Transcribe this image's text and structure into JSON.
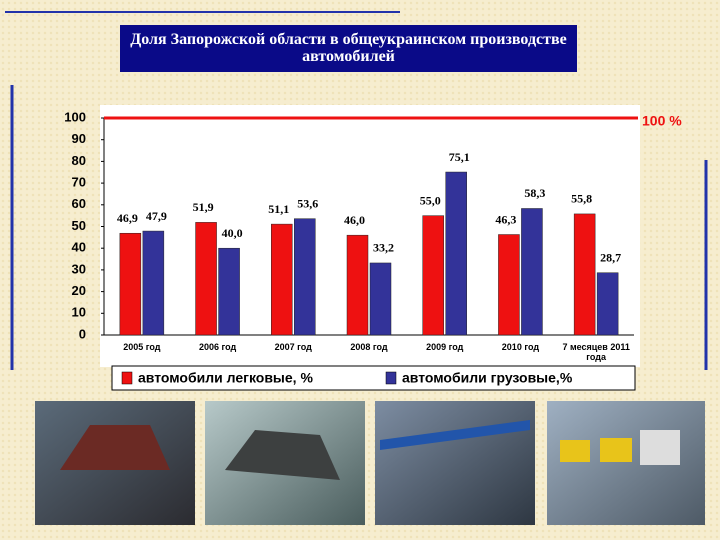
{
  "chart_data": {
    "type": "bar",
    "title": "Доля Запорожской области в общеукраинском производстве автомобилей",
    "categories": [
      "2005 год",
      "2006 год",
      "2007 год",
      "2008 год",
      "2009 год",
      "2010 год",
      "7 месяцев 2011 года"
    ],
    "series": [
      {
        "name": "автомобили легковые, %",
        "color": "#ee1111",
        "values": [
          46.9,
          51.9,
          51.1,
          46.0,
          55.0,
          46.3,
          55.8
        ],
        "value_labels": [
          "46,9",
          "51,9",
          "51,1",
          "46,0",
          "55,0",
          "46,3",
          "55,8"
        ]
      },
      {
        "name": "автомобили грузовые,%",
        "color": "#333399",
        "values": [
          47.9,
          40.0,
          53.6,
          33.2,
          75.1,
          58.3,
          28.7
        ],
        "value_labels": [
          "47,9",
          "40,0",
          "53,6",
          "33,2",
          "75,1",
          "58,3",
          "28,7"
        ]
      }
    ],
    "ylim": [
      0,
      100
    ],
    "yticks": [
      0,
      10,
      20,
      30,
      40,
      50,
      60,
      70,
      80,
      90,
      100
    ],
    "reference_line": {
      "value": 100,
      "label": "100 %",
      "color": "#ee1111"
    }
  }
}
